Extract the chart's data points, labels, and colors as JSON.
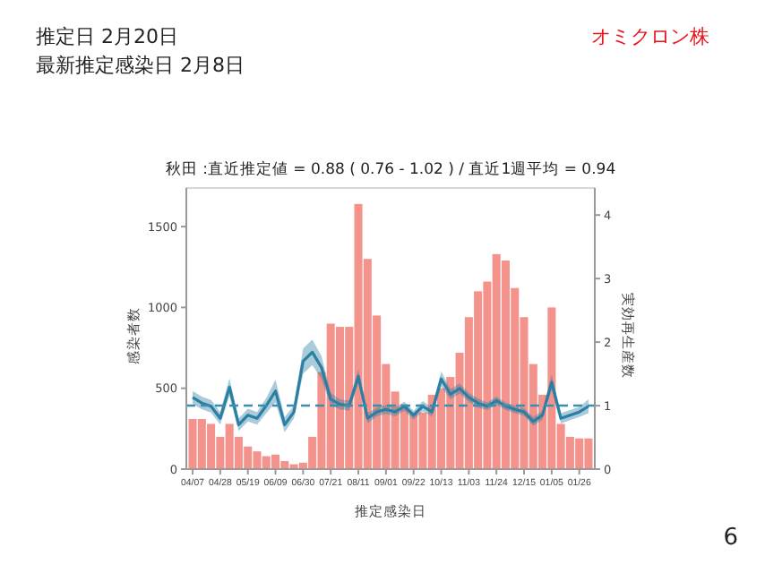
{
  "chart_data": {
    "type": "bar",
    "title": "秋田 :直近推定値 = 0.88 ( 0.76 - 1.02 ) / 直近1週平均 = 0.94",
    "annotations": [
      "推定日  2月20日",
      "最新推定感染日  2月8日",
      "オミクロン株",
      "6"
    ],
    "xlabel": "推定感染日",
    "ylabel": "感染者数",
    "y2label": "実効再生産数",
    "categories": [
      "04/07",
      null,
      null,
      "04/28",
      null,
      null,
      "05/19",
      null,
      null,
      "06/09",
      null,
      null,
      "06/30",
      null,
      null,
      "07/21",
      null,
      null,
      "08/11",
      null,
      null,
      "09/01",
      null,
      null,
      "09/22",
      null,
      null,
      "10/13",
      null,
      null,
      "11/03",
      null,
      null,
      "11/24",
      null,
      null,
      "12/15",
      null,
      null,
      "01/05",
      null,
      null,
      "01/26",
      null
    ],
    "ylim": [
      0,
      1650
    ],
    "yticks": [
      0,
      500,
      1000,
      1500
    ],
    "y2lim": [
      0,
      4.2
    ],
    "y2ticks": [
      0,
      1,
      2,
      3,
      4
    ],
    "ref_lines": [
      {
        "axis": "y2",
        "value": 1,
        "color": "#3a8fb0",
        "line_style": "dashed"
      }
    ],
    "series": [
      {
        "color": "#f4928c",
        "values": [
          310,
          310,
          280,
          200,
          280,
          200,
          140,
          110,
          80,
          90,
          50,
          30,
          40,
          200,
          600,
          900,
          880,
          880,
          1640,
          1300,
          950,
          650,
          480,
          400,
          350,
          350,
          460,
          500,
          570,
          720,
          940,
          1100,
          1160,
          1330,
          1290,
          1120,
          940,
          650,
          460,
          1000,
          280,
          200,
          190,
          190
        ]
      },
      {
        "type": "line",
        "axis": "y2",
        "color": "#2b7fa3",
        "values": [
          1.13,
          1.04,
          0.99,
          0.8,
          1.29,
          0.7,
          0.85,
          0.8,
          1.0,
          1.23,
          0.7,
          0.9,
          1.7,
          1.84,
          1.6,
          1.1,
          1.02,
          1.0,
          1.46,
          0.8,
          0.9,
          0.94,
          0.9,
          0.99,
          0.85,
          0.99,
          0.9,
          1.42,
          1.18,
          1.27,
          1.13,
          1.04,
          0.99,
          1.08,
          0.99,
          0.94,
          0.9,
          0.75,
          0.85,
          1.37,
          0.8,
          0.85,
          0.9,
          0.99
        ],
        "lower": [
          1.03,
          0.94,
          0.89,
          0.7,
          1.15,
          0.6,
          0.75,
          0.7,
          0.88,
          1.05,
          0.58,
          0.8,
          1.5,
          1.64,
          1.42,
          1.0,
          0.94,
          0.92,
          1.35,
          0.72,
          0.83,
          0.87,
          0.83,
          0.92,
          0.78,
          0.91,
          0.83,
          1.3,
          1.1,
          1.19,
          1.06,
          0.97,
          0.93,
          1.02,
          0.93,
          0.88,
          0.84,
          0.68,
          0.78,
          1.25,
          0.72,
          0.77,
          0.82,
          0.88
        ],
        "upper": [
          1.23,
          1.14,
          1.09,
          0.9,
          1.43,
          0.8,
          0.95,
          0.9,
          1.12,
          1.41,
          0.82,
          1.0,
          1.9,
          2.04,
          1.78,
          1.2,
          1.1,
          1.08,
          1.57,
          0.88,
          0.97,
          1.01,
          0.97,
          1.06,
          0.92,
          1.07,
          0.97,
          1.54,
          1.26,
          1.35,
          1.2,
          1.11,
          1.05,
          1.14,
          1.05,
          1.0,
          0.96,
          0.82,
          0.92,
          1.49,
          0.88,
          0.93,
          0.98,
          1.1
        ]
      }
    ]
  }
}
